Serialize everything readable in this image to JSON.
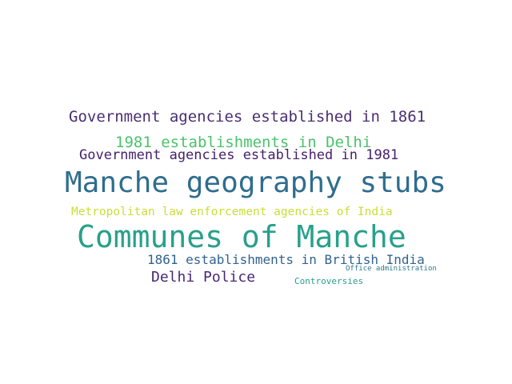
{
  "cloud": {
    "words": [
      {
        "text": "Government agencies established in 1861",
        "color": "#4a2f72"
      },
      {
        "text": "1981 establishments in Delhi",
        "color": "#4cc26c"
      },
      {
        "text": "Government agencies established in 1981",
        "color": "#45216a"
      },
      {
        "text": "Manche geography stubs",
        "color": "#2f6d8e"
      },
      {
        "text": "Metropolitan law enforcement agencies of India",
        "color": "#c9df34"
      },
      {
        "text": "Communes of Manche",
        "color": "#28a08b"
      },
      {
        "text": "1861 establishments in British India",
        "color": "#33638d"
      },
      {
        "text": "Delhi Police",
        "color": "#482878"
      },
      {
        "text": "Office administration",
        "color": "#2e7b8e"
      },
      {
        "text": "Controversies",
        "color": "#2a9d8f"
      }
    ]
  }
}
